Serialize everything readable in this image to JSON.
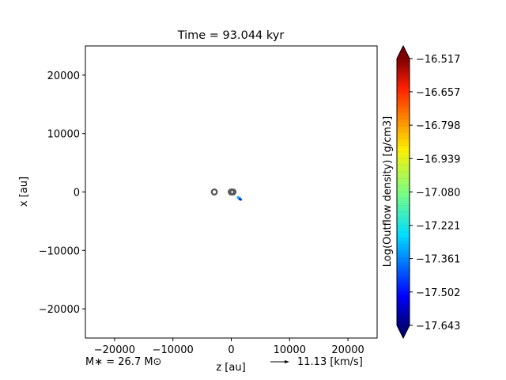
{
  "chart_data": {
    "type": "scatter",
    "title": "Time = 93.044 kyr",
    "xlabel": "z [au]",
    "ylabel": "x [au]",
    "xlim": [
      -25000,
      25000
    ],
    "ylim": [
      -25000,
      25000
    ],
    "xticks": [
      -20000,
      -10000,
      0,
      10000,
      20000
    ],
    "xtick_labels": [
      "−20000",
      "−10000",
      "0",
      "10000",
      "20000"
    ],
    "yticks": [
      -20000,
      -10000,
      0,
      10000,
      20000
    ],
    "ytick_labels": [
      "−20000",
      "−10000",
      "0",
      "10000",
      "20000"
    ],
    "grid": false,
    "stars": [
      {
        "z": -2900,
        "x": 0
      },
      {
        "z": 0,
        "x": 0
      },
      {
        "z": 300,
        "x": 0
      }
    ],
    "outflow_blob": {
      "z": 1400,
      "x": -1100
    },
    "colorbar": {
      "label": "Log(Outflow density) [g/cm3]",
      "min": -17.643,
      "max": -16.517,
      "colormap": "jet",
      "extend": "both",
      "ticks": [
        -17.643,
        -17.502,
        -17.361,
        -17.221,
        -17.08,
        -16.939,
        -16.798,
        -16.657,
        -16.517
      ],
      "tick_labels": [
        "−17.643",
        "−17.502",
        "−17.361",
        "−17.221",
        "−17.080",
        "−16.939",
        "−16.798",
        "−16.657",
        "−16.517"
      ]
    },
    "annotations": {
      "mass": "M∗ = 26.7 M⊙",
      "velocity_scale": "11.13 [km/s]"
    }
  }
}
